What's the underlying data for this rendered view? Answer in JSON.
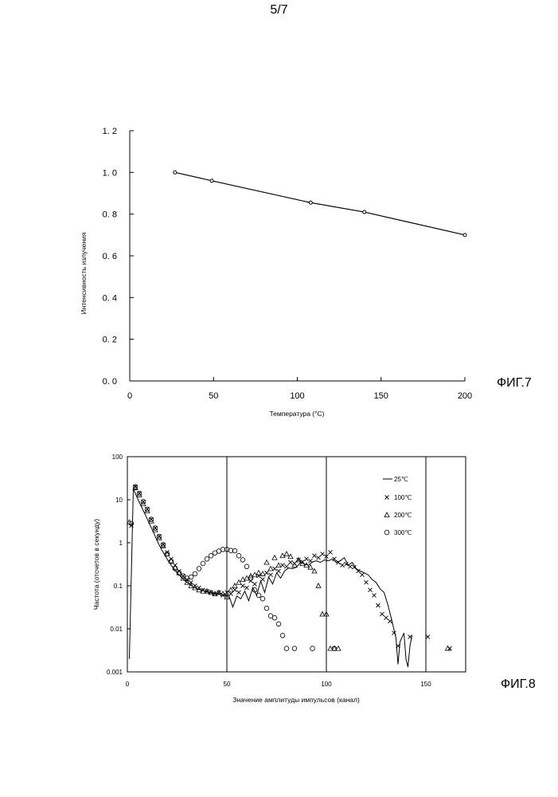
{
  "page_number": "5/7",
  "fig7_label": "ФИГ.7",
  "fig8_label": "ФИГ.8",
  "chart_data": [
    {
      "id": "fig7",
      "type": "line",
      "xlabel": "Температура (°C)",
      "ylabel": "Интенсивность излучения",
      "xlim": [
        0,
        200
      ],
      "ylim": [
        0.0,
        1.2
      ],
      "x_ticks": [
        "0",
        "50",
        "100",
        "150",
        "200"
      ],
      "y_ticks": [
        "0. 0",
        "0. 2",
        "0. 4",
        "0. 6",
        "0. 8",
        "1. 0",
        "1. 2"
      ],
      "series": [
        {
          "name": "intensity",
          "x": [
            27,
            49,
            108,
            140,
            200
          ],
          "y": [
            1.0,
            0.96,
            0.855,
            0.81,
            0.7
          ]
        }
      ]
    },
    {
      "id": "fig8",
      "type": "scatter",
      "xlabel": "Значение амплитуды импульсов (канал)",
      "ylabel": "Частота (отсчетов в секунду)",
      "xlim": [
        0,
        170
      ],
      "ylim": [
        0.001,
        100
      ],
      "yscale": "log",
      "x_ticks": [
        "0",
        "50",
        "100",
        "150"
      ],
      "y_ticks": [
        "0.001",
        "0.01",
        "0.1",
        "1",
        "10",
        "100"
      ],
      "vlines": [
        50,
        100,
        150
      ],
      "series": [
        {
          "name": "25℃",
          "marker": "line",
          "x": [
            1,
            3,
            5,
            7,
            9,
            11,
            13,
            15,
            17,
            19,
            21,
            23,
            25,
            27,
            29,
            31,
            33,
            35,
            37,
            39,
            41,
            43,
            45,
            47,
            49,
            51,
            53,
            55,
            57,
            59,
            61,
            63,
            65,
            67,
            69,
            71,
            73,
            75,
            77,
            79,
            81,
            83,
            85,
            87,
            89,
            91,
            93,
            95,
            97,
            99,
            101,
            103,
            105,
            107,
            109,
            111,
            113,
            115,
            117,
            119,
            121,
            123,
            125,
            127,
            129,
            131,
            133,
            135,
            136,
            137,
            139,
            140,
            141,
            142,
            143
          ],
          "y": [
            0.002,
            18,
            11,
            7,
            4.5,
            2.8,
            1.8,
            1.1,
            0.72,
            0.5,
            0.35,
            0.26,
            0.2,
            0.16,
            0.13,
            0.11,
            0.095,
            0.085,
            0.08,
            0.075,
            0.07,
            0.068,
            0.066,
            0.064,
            0.062,
            0.06,
            0.032,
            0.058,
            0.05,
            0.075,
            0.045,
            0.09,
            0.06,
            0.13,
            0.07,
            0.16,
            0.11,
            0.2,
            0.15,
            0.22,
            0.26,
            0.25,
            0.27,
            0.35,
            0.32,
            0.3,
            0.36,
            0.38,
            0.35,
            0.4,
            0.38,
            0.42,
            0.35,
            0.38,
            0.45,
            0.3,
            0.35,
            0.25,
            0.22,
            0.2,
            0.18,
            0.14,
            0.12,
            0.085,
            0.07,
            0.035,
            0.015,
            0.006,
            0.0015,
            0.005,
            0.008,
            0.002,
            0.0013,
            0.004,
            0.007
          ]
        },
        {
          "name": "100℃",
          "marker": "x",
          "x": [
            2,
            4,
            6,
            8,
            10,
            12,
            14,
            16,
            18,
            20,
            22,
            24,
            26,
            28,
            30,
            32,
            34,
            36,
            38,
            40,
            42,
            44,
            46,
            48,
            50,
            52,
            54,
            56,
            58,
            60,
            62,
            64,
            66,
            68,
            70,
            72,
            74,
            76,
            78,
            80,
            82,
            84,
            86,
            88,
            90,
            92,
            94,
            96,
            98,
            100,
            102,
            104,
            106,
            108,
            110,
            112,
            114,
            116,
            118,
            120,
            122,
            124,
            126,
            128,
            130,
            132,
            134,
            136,
            142,
            151,
            162
          ],
          "y": [
            2.5,
            20,
            14,
            9,
            6,
            3.5,
            2.2,
            1.4,
            0.9,
            0.6,
            0.42,
            0.3,
            0.22,
            0.17,
            0.14,
            0.12,
            0.1,
            0.09,
            0.08,
            0.075,
            0.07,
            0.065,
            0.07,
            0.06,
            0.07,
            0.065,
            0.08,
            0.07,
            0.1,
            0.09,
            0.13,
            0.11,
            0.17,
            0.14,
            0.2,
            0.18,
            0.25,
            0.22,
            0.3,
            0.28,
            0.35,
            0.33,
            0.4,
            0.36,
            0.42,
            0.38,
            0.5,
            0.45,
            0.55,
            0.48,
            0.6,
            0.42,
            0.35,
            0.3,
            0.32,
            0.28,
            0.27,
            0.22,
            0.18,
            0.12,
            0.08,
            0.06,
            0.035,
            0.022,
            0.018,
            0.015,
            0.008,
            0.004,
            0.0065,
            0.0065,
            0.0035
          ]
        },
        {
          "name": "200℃",
          "marker": "triangle",
          "x": [
            1,
            4,
            6,
            8,
            10,
            12,
            14,
            16,
            18,
            20,
            22,
            24,
            26,
            28,
            30,
            32,
            34,
            36,
            38,
            40,
            42,
            44,
            46,
            48,
            50,
            52,
            54,
            56,
            58,
            60,
            62,
            64,
            66,
            68,
            70,
            72,
            74,
            76,
            78,
            80,
            82,
            84,
            86,
            88,
            90,
            92,
            94,
            96,
            98,
            100,
            102,
            104,
            106,
            161
          ],
          "y": [
            3,
            19,
            13,
            8,
            5.5,
            3.2,
            2,
            1.3,
            0.85,
            0.55,
            0.38,
            0.27,
            0.2,
            0.15,
            0.12,
            0.1,
            0.09,
            0.08,
            0.075,
            0.075,
            0.07,
            0.065,
            0.07,
            0.065,
            0.055,
            0.08,
            0.1,
            0.12,
            0.14,
            0.15,
            0.17,
            0.18,
            0.2,
            0.19,
            0.35,
            0.25,
            0.45,
            0.3,
            0.5,
            0.55,
            0.48,
            0.3,
            0.4,
            0.33,
            0.3,
            0.27,
            0.22,
            0.1,
            0.022,
            0.022,
            0.0035,
            0.0035,
            0.0035,
            0.0035
          ]
        },
        {
          "name": "300℃",
          "marker": "circle",
          "x": [
            2,
            4,
            6,
            8,
            10,
            12,
            14,
            16,
            18,
            20,
            22,
            24,
            26,
            28,
            30,
            32,
            34,
            36,
            38,
            40,
            42,
            44,
            46,
            48,
            50,
            52,
            54,
            56,
            58,
            60,
            62,
            64,
            66,
            68,
            70,
            72,
            74,
            76,
            78,
            80,
            84,
            93,
            104
          ],
          "y": [
            2.8,
            20,
            14,
            9,
            6,
            3.5,
            2.2,
            1.4,
            0.9,
            0.55,
            0.37,
            0.25,
            0.2,
            0.17,
            0.15,
            0.16,
            0.19,
            0.25,
            0.33,
            0.42,
            0.5,
            0.58,
            0.64,
            0.7,
            0.7,
            0.66,
            0.65,
            0.5,
            0.4,
            0.28,
            0.15,
            0.08,
            0.06,
            0.05,
            0.03,
            0.02,
            0.018,
            0.013,
            0.007,
            0.0035,
            0.0035,
            0.0035,
            0.0035
          ]
        }
      ]
    }
  ]
}
